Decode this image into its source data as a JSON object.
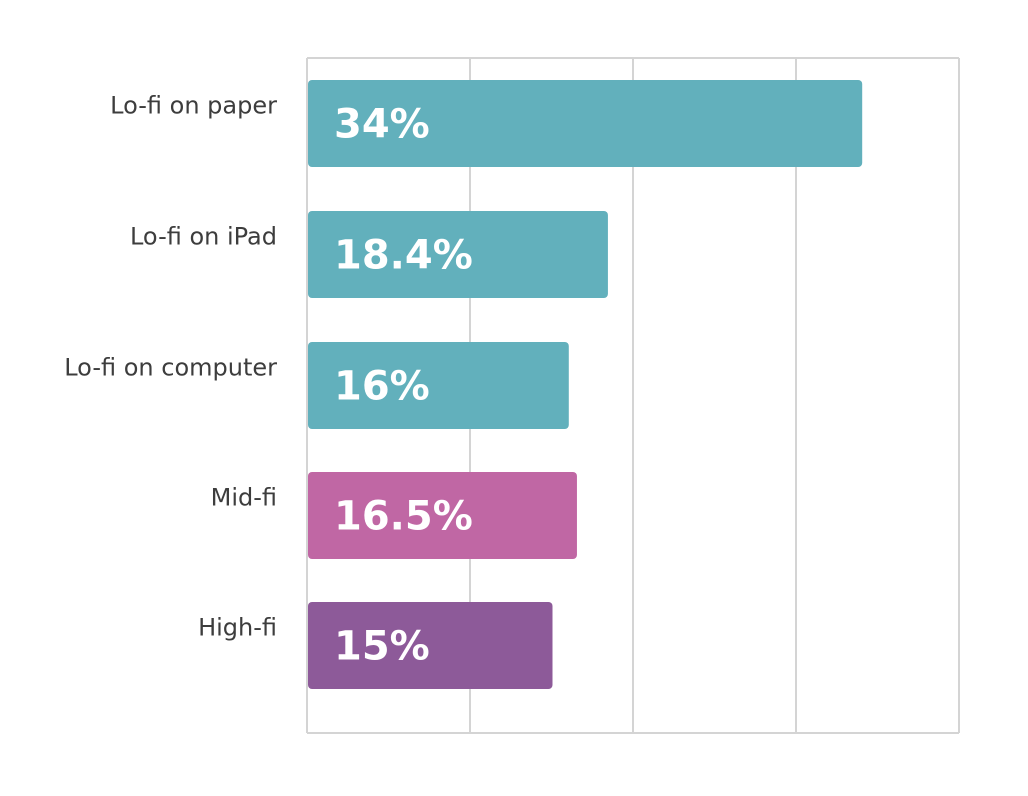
{
  "chart_data": {
    "type": "bar",
    "orientation": "horizontal",
    "title": "",
    "xlabel": "",
    "ylabel": "",
    "xlim": [
      0,
      40
    ],
    "grid": true,
    "legend": "none",
    "categories": [
      "Lo-fi on paper",
      "Lo-fi on iPad",
      "Lo-fi on computer",
      "Mid-fi",
      "High-fi"
    ],
    "values": [
      34,
      18.4,
      16,
      16.5,
      15
    ],
    "value_labels": [
      "34%",
      "18.4%",
      "16%",
      "16.5%",
      "15%"
    ],
    "colors": [
      "#62b0bc",
      "#62b0bc",
      "#62b0bc",
      "#c067a4",
      "#8d5a99"
    ]
  },
  "colors": {
    "gridline": "#d4d4d4",
    "category_text": "#3d3d3d",
    "value_text": "#ffffff",
    "background": "#ffffff"
  }
}
